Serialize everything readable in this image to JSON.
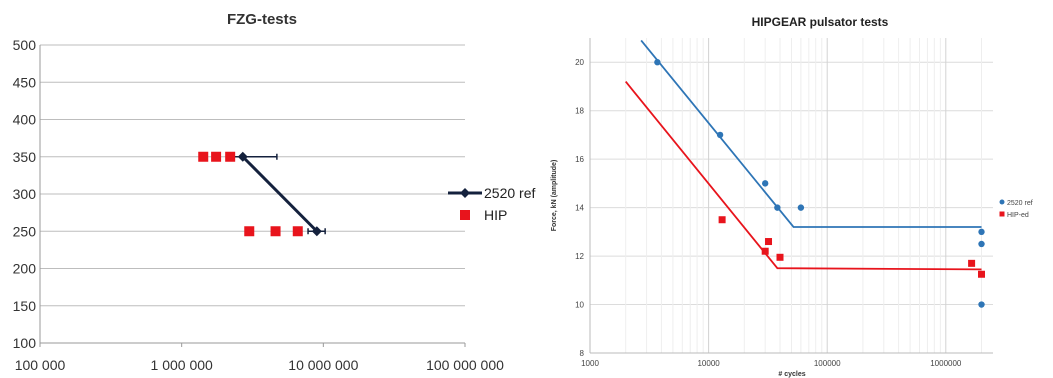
{
  "chart_data": [
    {
      "type": "scatter",
      "title": "FZG-tests",
      "xlabel": "",
      "ylabel": "",
      "xscale": "log",
      "xlim": [
        100000,
        100000000
      ],
      "ylim": [
        100,
        500
      ],
      "x_tick_labels": [
        "100 000",
        "1 000 000",
        "10 000 000",
        "100 000 000"
      ],
      "x_ticks": [
        100000,
        1000000,
        10000000,
        100000000
      ],
      "y_ticks": [
        100,
        150,
        200,
        250,
        300,
        350,
        400,
        450,
        500
      ],
      "y_tick_labels": [
        "100",
        "150",
        "200",
        "250",
        "300",
        "350",
        "400",
        "450",
        "500"
      ],
      "grid": "horizontal",
      "legend_position": "right",
      "series": [
        {
          "name": "2520 ref",
          "style": "line-diamond",
          "color": "#14213d",
          "points": [
            [
              2700000,
              350
            ],
            [
              9000000,
              250
            ]
          ],
          "error_bars": [
            {
              "x_low": 2300000,
              "x_high": 4700000,
              "y": 350
            },
            {
              "x_low": 7800000,
              "x_high": 10300000,
              "y": 250
            }
          ]
        },
        {
          "name": "HIP",
          "style": "square",
          "color": "#e8141c",
          "points": [
            [
              1420000,
              350
            ],
            [
              1750000,
              350
            ],
            [
              2200000,
              350
            ],
            [
              3000000,
              250
            ],
            [
              4600000,
              250
            ],
            [
              6600000,
              250
            ]
          ]
        }
      ]
    },
    {
      "type": "scatter",
      "title": "HIPGEAR pulsator tests",
      "xlabel": "# cycles",
      "ylabel": "Force, kN (amplitude)",
      "xscale": "log",
      "xlim": [
        1000,
        2500000
      ],
      "ylim": [
        8,
        21
      ],
      "x_ticks": [
        1000,
        10000,
        100000,
        1000000
      ],
      "x_tick_labels": [
        "1000",
        "10000",
        "100000",
        "1000000"
      ],
      "y_ticks": [
        8,
        10,
        12,
        14,
        16,
        18,
        20
      ],
      "y_tick_labels": [
        "8",
        "10",
        "12",
        "14",
        "16",
        "18",
        "20"
      ],
      "grid": "both",
      "legend_position": "right",
      "series": [
        {
          "name": "2520 ref",
          "color": "#2e75b6",
          "points": [
            [
              3700,
              20
            ],
            [
              12500,
              17
            ],
            [
              30000,
              15
            ],
            [
              38000,
              14
            ],
            [
              60000,
              14
            ],
            [
              2000000,
              13
            ],
            [
              2000000,
              12.5
            ],
            [
              2000000,
              10
            ]
          ],
          "trend": [
            [
              2700,
              20.9
            ],
            [
              52000,
              13.2
            ],
            [
              2000000,
              13.2
            ]
          ]
        },
        {
          "name": "HIP-ed",
          "color": "#e8141c",
          "points": [
            [
              13000,
              13.5
            ],
            [
              30000,
              12.2
            ],
            [
              32000,
              12.6
            ],
            [
              40000,
              11.95
            ],
            [
              1650000,
              11.7
            ],
            [
              2000000,
              11.25
            ]
          ],
          "trend": [
            [
              2000,
              19.2
            ],
            [
              38000,
              11.5
            ],
            [
              2000000,
              11.45
            ]
          ]
        }
      ]
    }
  ]
}
